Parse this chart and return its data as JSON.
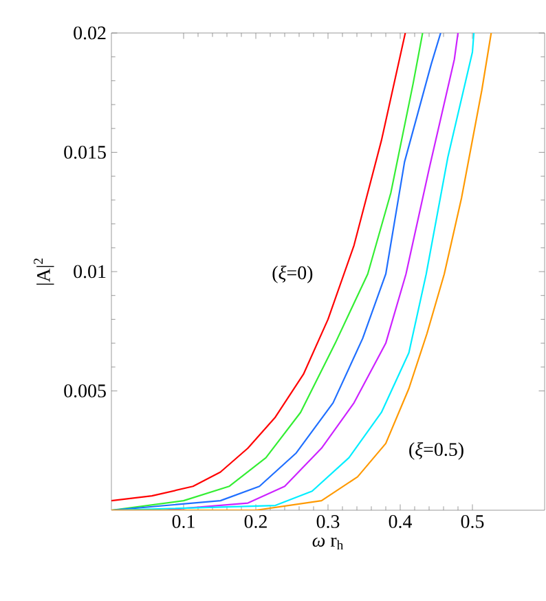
{
  "chart_data": {
    "type": "line",
    "xlabel": "*ω* r$_{h}$",
    "ylabel": "|A|$^{2}$",
    "xlim": [
      0,
      0.6
    ],
    "ylim": [
      0,
      0.02
    ],
    "xticks": [
      0.1,
      0.2,
      0.3,
      0.4,
      0.5
    ],
    "yticks": [
      0.005,
      0.01,
      0.015,
      0.02
    ],
    "grid": false,
    "marker": "none",
    "line_style": "solid",
    "series": [
      {
        "color": "#ff0000",
        "x": [
          0,
          0.056,
          0.113,
          0.151,
          0.189,
          0.227,
          0.266,
          0.3,
          0.336,
          0.374,
          0.407
        ],
        "values": [
          0.0004,
          0.0006,
          0.001,
          0.0016,
          0.0026,
          0.0039,
          0.0057,
          0.008,
          0.0111,
          0.0155,
          0.02
        ]
      },
      {
        "color": "#33ee33",
        "x": [
          0,
          0.1,
          0.163,
          0.214,
          0.262,
          0.31,
          0.355,
          0.387,
          0.418,
          0.431
        ],
        "values": [
          0,
          0.0004,
          0.001,
          0.0022,
          0.0041,
          0.007,
          0.0099,
          0.0133,
          0.0179,
          0.02
        ]
      },
      {
        "color": "#1f6fff",
        "x": [
          0,
          0.151,
          0.205,
          0.256,
          0.307,
          0.348,
          0.38,
          0.406,
          0.443,
          0.456
        ],
        "values": [
          0,
          0.0004,
          0.001,
          0.0024,
          0.0045,
          0.0072,
          0.0099,
          0.0146,
          0.0187,
          0.02
        ]
      },
      {
        "color": "#cc22ff",
        "x": [
          0,
          0.07,
          0.189,
          0.24,
          0.291,
          0.336,
          0.38,
          0.408,
          0.44,
          0.475,
          0.48
        ],
        "values": [
          0,
          0,
          0.0003,
          0.001,
          0.0026,
          0.0045,
          0.007,
          0.0099,
          0.0143,
          0.0189,
          0.02
        ]
      },
      {
        "color": "#00eeff",
        "x": [
          0,
          0.227,
          0.278,
          0.329,
          0.374,
          0.412,
          0.436,
          0.466,
          0.5,
          0.502
        ],
        "values": [
          0,
          0.0002,
          0.0008,
          0.0022,
          0.0041,
          0.0066,
          0.0099,
          0.0148,
          0.0192,
          0.02
        ]
      },
      {
        "color": "#ff9900",
        "x": [
          0,
          0.2,
          0.291,
          0.341,
          0.38,
          0.412,
          0.437,
          0.461,
          0.485,
          0.513,
          0.526
        ],
        "values": [
          0,
          0,
          0.0004,
          0.0014,
          0.0028,
          0.0051,
          0.0074,
          0.0099,
          0.0131,
          0.0176,
          0.02
        ]
      }
    ],
    "annotations": [
      "(*ξ*=0)",
      "(*ξ*=0.5)"
    ]
  }
}
